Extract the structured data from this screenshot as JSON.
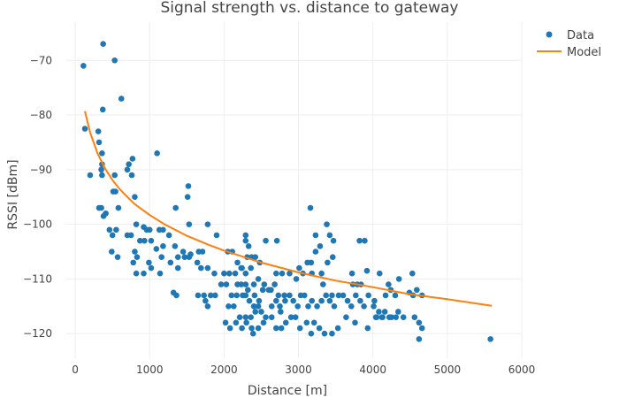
{
  "chart_data": {
    "type": "scatter",
    "title": "Signal strength vs. distance to gateway",
    "xlabel": "Distance [m]",
    "ylabel": "RSSI [dBm]",
    "xlim": [
      -120,
      6000
    ],
    "ylim": [
      -124.5,
      -63
    ],
    "xticks": [
      0,
      1000,
      2000,
      3000,
      4000,
      5000,
      6000
    ],
    "yticks": [
      -70,
      -80,
      -90,
      -100,
      -110,
      -120
    ],
    "grid": true,
    "legend_position": "top-right",
    "colors": {
      "data": "#1f77b4",
      "model": "#ff7f0e",
      "grid": "#eeeeee"
    },
    "series": [
      {
        "name": "Data",
        "mode": "markers",
        "points": [
          [
            110,
            -71
          ],
          [
            375,
            -67
          ],
          [
            530,
            -70
          ],
          [
            620,
            -77
          ],
          [
            370,
            -79
          ],
          [
            130,
            -82.5
          ],
          [
            310,
            -83
          ],
          [
            320,
            -85
          ],
          [
            360,
            -87
          ],
          [
            360,
            -89
          ],
          [
            350,
            -90
          ],
          [
            200,
            -91
          ],
          [
            360,
            -91
          ],
          [
            530,
            -91
          ],
          [
            770,
            -88
          ],
          [
            720,
            -89
          ],
          [
            700,
            -90
          ],
          [
            760,
            -91
          ],
          [
            1100,
            -87
          ],
          [
            540,
            -94
          ],
          [
            510,
            -94
          ],
          [
            320,
            -97
          ],
          [
            350,
            -97
          ],
          [
            410,
            -98
          ],
          [
            380,
            -98.5
          ],
          [
            580,
            -97
          ],
          [
            800,
            -95
          ],
          [
            1350,
            -97
          ],
          [
            1520,
            -93
          ],
          [
            1510,
            -95
          ],
          [
            460,
            -101
          ],
          [
            500,
            -102
          ],
          [
            550,
            -101
          ],
          [
            700,
            -102
          ],
          [
            750,
            -102
          ],
          [
            820,
            -100
          ],
          [
            920,
            -100.5
          ],
          [
            960,
            -101
          ],
          [
            1000,
            -101
          ],
          [
            1130,
            -101
          ],
          [
            1180,
            -101
          ],
          [
            1260,
            -102
          ],
          [
            1530,
            -100
          ],
          [
            1780,
            -100
          ],
          [
            1900,
            -102
          ],
          [
            800,
            -105
          ],
          [
            870,
            -103
          ],
          [
            930,
            -103
          ],
          [
            1020,
            -103
          ],
          [
            1090,
            -104.5
          ],
          [
            1180,
            -104
          ],
          [
            1340,
            -104
          ],
          [
            1450,
            -105
          ],
          [
            1550,
            -105.5
          ],
          [
            1660,
            -105
          ],
          [
            1710,
            -105
          ],
          [
            490,
            -105
          ],
          [
            570,
            -106
          ],
          [
            830,
            -106
          ],
          [
            780,
            -107
          ],
          [
            990,
            -107
          ],
          [
            1160,
            -106
          ],
          [
            1280,
            -107
          ],
          [
            1380,
            -106
          ],
          [
            1470,
            -106
          ],
          [
            1530,
            -106
          ],
          [
            1640,
            -107
          ],
          [
            1690,
            -108
          ],
          [
            1780,
            -108
          ],
          [
            1870,
            -109
          ],
          [
            820,
            -109
          ],
          [
            920,
            -109
          ],
          [
            1020,
            -108
          ],
          [
            1140,
            -109
          ],
          [
            1380,
            -108
          ],
          [
            1360,
            -113
          ],
          [
            1320,
            -112.5
          ],
          [
            1650,
            -113
          ],
          [
            1730,
            -113
          ],
          [
            1750,
            -114
          ],
          [
            1820,
            -113
          ],
          [
            1880,
            -113
          ],
          [
            1960,
            -111
          ],
          [
            2030,
            -111
          ],
          [
            2100,
            -113
          ],
          [
            2170,
            -113
          ],
          [
            2250,
            -113
          ],
          [
            2320,
            -112
          ],
          [
            1780,
            -115
          ],
          [
            2000,
            -109
          ],
          [
            2070,
            -109
          ],
          [
            2150,
            -109
          ],
          [
            2230,
            -108
          ],
          [
            2290,
            -109
          ],
          [
            2360,
            -108
          ],
          [
            2180,
            -107
          ],
          [
            2240,
            -108
          ],
          [
            2310,
            -106
          ],
          [
            2370,
            -106
          ],
          [
            2420,
            -106
          ],
          [
            2480,
            -107
          ],
          [
            2050,
            -105
          ],
          [
            2110,
            -105
          ],
          [
            2290,
            -103
          ],
          [
            2560,
            -103
          ],
          [
            2710,
            -103
          ],
          [
            2290,
            -102
          ],
          [
            2330,
            -104
          ],
          [
            2180,
            -111
          ],
          [
            2230,
            -111
          ],
          [
            2290,
            -111
          ],
          [
            2400,
            -111
          ],
          [
            2460,
            -110
          ],
          [
            2520,
            -112
          ],
          [
            2630,
            -112
          ],
          [
            2700,
            -109
          ],
          [
            2780,
            -109
          ],
          [
            2880,
            -109
          ],
          [
            2970,
            -110
          ],
          [
            3060,
            -109
          ],
          [
            3180,
            -109
          ],
          [
            3310,
            -109
          ],
          [
            3330,
            -111
          ],
          [
            3450,
            -113
          ],
          [
            2290,
            -113
          ],
          [
            2340,
            -114
          ],
          [
            2410,
            -113
          ],
          [
            2470,
            -114
          ],
          [
            2400,
            -115
          ],
          [
            2460,
            -115
          ],
          [
            2060,
            -115
          ],
          [
            2130,
            -115
          ],
          [
            2210,
            -117
          ],
          [
            2290,
            -117
          ],
          [
            2360,
            -117
          ],
          [
            2420,
            -116
          ],
          [
            2500,
            -116
          ],
          [
            2560,
            -117
          ],
          [
            2640,
            -115
          ],
          [
            2700,
            -114
          ],
          [
            2760,
            -116
          ],
          [
            2820,
            -114
          ],
          [
            2880,
            -113
          ],
          [
            2930,
            -114
          ],
          [
            2990,
            -115
          ],
          [
            3030,
            -113
          ],
          [
            3080,
            -113
          ],
          [
            3130,
            -115
          ],
          [
            3180,
            -114
          ],
          [
            3250,
            -115
          ],
          [
            3310,
            -114
          ],
          [
            3370,
            -113
          ],
          [
            3420,
            -114
          ],
          [
            3480,
            -115
          ],
          [
            3540,
            -113
          ],
          [
            3600,
            -113
          ],
          [
            3660,
            -114
          ],
          [
            3710,
            -115
          ],
          [
            3770,
            -113
          ],
          [
            3830,
            -114
          ],
          [
            3880,
            -115
          ],
          [
            3940,
            -113
          ],
          [
            4020,
            -114
          ],
          [
            4080,
            -116
          ],
          [
            4120,
            -117
          ],
          [
            4160,
            -116
          ],
          [
            4220,
            -117
          ],
          [
            4310,
            -117
          ],
          [
            4410,
            -117
          ],
          [
            2020,
            -118
          ],
          [
            2080,
            -119
          ],
          [
            2160,
            -118
          ],
          [
            2240,
            -119
          ],
          [
            2300,
            -118
          ],
          [
            2370,
            -119
          ],
          [
            2390,
            -120
          ],
          [
            2460,
            -119
          ],
          [
            2530,
            -118
          ],
          [
            2640,
            -117
          ],
          [
            2700,
            -119
          ],
          [
            2770,
            -119
          ],
          [
            2830,
            -118
          ],
          [
            2900,
            -117
          ],
          [
            2960,
            -117
          ],
          [
            3020,
            -119
          ],
          [
            3110,
            -118
          ],
          [
            3170,
            -120
          ],
          [
            3210,
            -118
          ],
          [
            3280,
            -119
          ],
          [
            3350,
            -120
          ],
          [
            3450,
            -120
          ],
          [
            3530,
            -119
          ],
          [
            3640,
            -117
          ],
          [
            3760,
            -118
          ],
          [
            3930,
            -119
          ],
          [
            4040,
            -117
          ],
          [
            4130,
            -117
          ],
          [
            4250,
            -117
          ],
          [
            4340,
            -116
          ],
          [
            4620,
            -118
          ],
          [
            4660,
            -119
          ],
          [
            4620,
            -121
          ],
          [
            5580,
            -121
          ],
          [
            4530,
            -109
          ],
          [
            4590,
            -112
          ],
          [
            4660,
            -113
          ],
          [
            4350,
            -110
          ],
          [
            4240,
            -112
          ],
          [
            4170,
            -113
          ],
          [
            4090,
            -109
          ],
          [
            4210,
            -111
          ],
          [
            4300,
            -113
          ],
          [
            4010,
            -115
          ],
          [
            4050,
            -117
          ],
          [
            3720,
            -109
          ],
          [
            3730,
            -111
          ],
          [
            3790,
            -111
          ],
          [
            3840,
            -111
          ],
          [
            3920,
            -108.5
          ],
          [
            3820,
            -103
          ],
          [
            3890,
            -103
          ],
          [
            3160,
            -97
          ],
          [
            3230,
            -102
          ],
          [
            3380,
            -100
          ],
          [
            3420,
            -102
          ],
          [
            3470,
            -103
          ],
          [
            3460,
            -106
          ],
          [
            3390,
            -107
          ],
          [
            3290,
            -104
          ],
          [
            3230,
            -105
          ],
          [
            3170,
            -107
          ],
          [
            3120,
            -107
          ],
          [
            3010,
            -108
          ],
          [
            4490,
            -112.5
          ],
          [
            4540,
            -113
          ],
          [
            4560,
            -117
          ],
          [
            2730,
            -113
          ],
          [
            2540,
            -111
          ],
          [
            2600,
            -112
          ],
          [
            2680,
            -111
          ],
          [
            2810,
            -113
          ],
          [
            2750,
            -115
          ]
        ]
      },
      {
        "name": "Model",
        "mode": "lines",
        "points": [
          [
            130,
            -79.3
          ],
          [
            200,
            -83.2
          ],
          [
            300,
            -87.0
          ],
          [
            400,
            -89.8
          ],
          [
            500,
            -91.9
          ],
          [
            600,
            -93.6
          ],
          [
            700,
            -95.0
          ],
          [
            800,
            -96.3
          ],
          [
            1000,
            -98.3
          ],
          [
            1200,
            -100.0
          ],
          [
            1500,
            -102.1
          ],
          [
            1800,
            -103.8
          ],
          [
            2000,
            -104.8
          ],
          [
            2500,
            -107.0
          ],
          [
            3000,
            -108.8
          ],
          [
            3500,
            -110.3
          ],
          [
            4000,
            -111.5
          ],
          [
            4500,
            -112.8
          ],
          [
            5000,
            -113.7
          ],
          [
            5600,
            -114.9
          ]
        ]
      }
    ]
  }
}
